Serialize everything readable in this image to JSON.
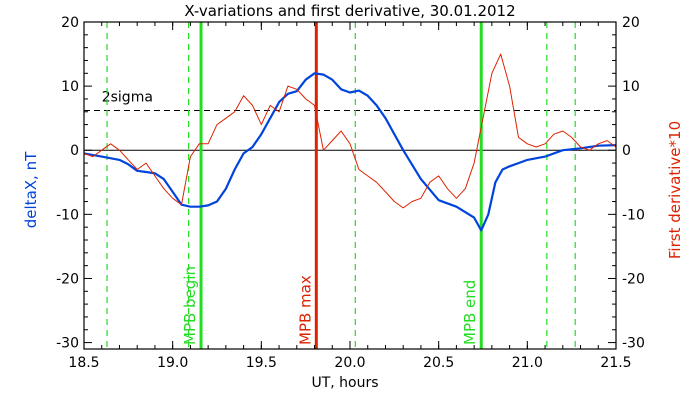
{
  "chart_data": {
    "type": "line",
    "title": "X-variations and first derivative, 30.01.2012",
    "xlabel": "UT, hours",
    "ylabel_left": "deltaX, nT",
    "ylabel_right": "First derivative*10",
    "xlim": [
      18.5,
      21.5
    ],
    "ylim": [
      -31,
      20
    ],
    "x_ticks": [
      "18.5",
      "19.0",
      "19.5",
      "20.0",
      "20.5",
      "21.0",
      "21.5"
    ],
    "y_ticks": [
      "20",
      "10",
      "0",
      "-10",
      "-20",
      "-30"
    ],
    "colors": {
      "deltaX": "#0044dd",
      "derivative": "#dd2200",
      "mpb_boundary": "#22dd22",
      "mpb_max": "#dd2200",
      "axis": "#000000"
    },
    "threshold": {
      "label": "2sigma",
      "value": 6.2
    },
    "vertical_markers": [
      {
        "label": "MPB begin",
        "x": 19.16,
        "style": "solid-green"
      },
      {
        "label": "MPB max",
        "x": 19.81,
        "style": "solid-red"
      },
      {
        "label": "MPB end",
        "x": 20.74,
        "style": "solid-green"
      }
    ],
    "dashed_markers_x": [
      18.63,
      19.09,
      20.03,
      21.11,
      21.27
    ],
    "series": [
      {
        "name": "deltaX",
        "x": [
          18.5,
          18.6,
          18.7,
          18.75,
          18.8,
          18.85,
          18.9,
          18.95,
          19.0,
          19.05,
          19.1,
          19.15,
          19.2,
          19.25,
          19.3,
          19.35,
          19.4,
          19.45,
          19.5,
          19.55,
          19.6,
          19.65,
          19.7,
          19.75,
          19.8,
          19.85,
          19.9,
          19.95,
          20.0,
          20.05,
          20.1,
          20.15,
          20.2,
          20.3,
          20.4,
          20.5,
          20.6,
          20.7,
          20.74,
          20.78,
          20.82,
          20.86,
          20.9,
          20.95,
          21.0,
          21.1,
          21.2,
          21.3,
          21.4,
          21.5
        ],
        "values": [
          -0.5,
          -1.0,
          -1.5,
          -2.2,
          -3.2,
          -3.4,
          -3.6,
          -4.5,
          -6.5,
          -8.5,
          -8.8,
          -8.8,
          -8.6,
          -8.0,
          -6.0,
          -3.0,
          -0.5,
          0.5,
          2.5,
          5.0,
          7.5,
          8.8,
          9.2,
          11.0,
          12.0,
          11.8,
          11.0,
          9.5,
          9.0,
          9.3,
          8.5,
          7.0,
          5.0,
          0.0,
          -4.5,
          -7.8,
          -8.8,
          -10.5,
          -12.5,
          -10.0,
          -5.0,
          -3.0,
          -2.5,
          -2.0,
          -1.5,
          -1.0,
          0.0,
          0.3,
          0.7,
          0.8
        ]
      },
      {
        "name": "First derivative*10",
        "x": [
          18.5,
          18.55,
          18.6,
          18.65,
          18.7,
          18.75,
          18.8,
          18.85,
          18.9,
          18.95,
          19.0,
          19.05,
          19.1,
          19.15,
          19.2,
          19.25,
          19.3,
          19.35,
          19.4,
          19.45,
          19.5,
          19.55,
          19.6,
          19.65,
          19.7,
          19.75,
          19.8,
          19.85,
          19.9,
          19.95,
          20.0,
          20.05,
          20.1,
          20.15,
          20.2,
          20.25,
          20.3,
          20.35,
          20.4,
          20.45,
          20.5,
          20.55,
          20.6,
          20.65,
          20.7,
          20.75,
          20.8,
          20.85,
          20.9,
          20.95,
          21.0,
          21.05,
          21.1,
          21.15,
          21.2,
          21.25,
          21.3,
          21.35,
          21.4,
          21.45,
          21.5
        ],
        "values": [
          -0.5,
          -1.0,
          0.0,
          1.0,
          0.0,
          -1.5,
          -3.0,
          -2.0,
          -4.0,
          -6.0,
          -7.5,
          -8.5,
          -1.0,
          1.0,
          1.0,
          4.0,
          5.0,
          6.0,
          8.5,
          7.0,
          4.0,
          7.0,
          6.0,
          10.0,
          9.5,
          8.0,
          7.0,
          0.0,
          1.5,
          3.0,
          1.0,
          -3.0,
          -4.0,
          -5.0,
          -6.5,
          -8.0,
          -9.0,
          -8.0,
          -7.5,
          -5.0,
          -4.0,
          -6.0,
          -7.5,
          -6.0,
          -2.0,
          5.0,
          12.0,
          15.0,
          10.0,
          2.0,
          1.0,
          0.5,
          1.0,
          2.5,
          3.0,
          2.0,
          0.5,
          0.0,
          1.0,
          1.5,
          0.5
        ]
      }
    ]
  }
}
